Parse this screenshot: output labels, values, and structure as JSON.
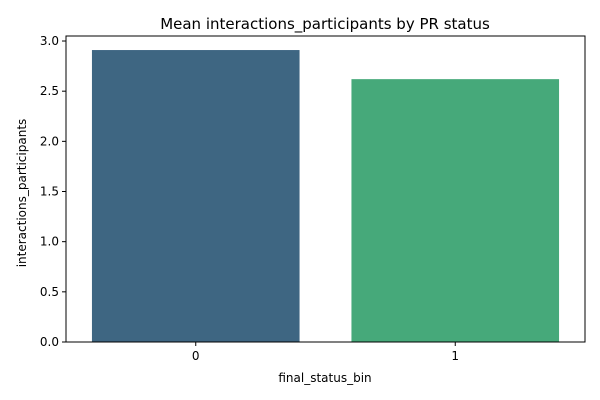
{
  "chart_data": {
    "type": "bar",
    "title": "Mean interactions_participants by PR status",
    "xlabel": "final_status_bin",
    "ylabel": "interactions_participants",
    "categories": [
      "0",
      "1"
    ],
    "values": [
      2.91,
      2.62
    ],
    "ylim": [
      0,
      3.05
    ],
    "yticks": [
      "0.0",
      "0.5",
      "1.0",
      "1.5",
      "2.0",
      "2.5",
      "3.0"
    ],
    "grid": false,
    "legend": "none",
    "colors": [
      "#3e6682",
      "#46a97a"
    ]
  }
}
